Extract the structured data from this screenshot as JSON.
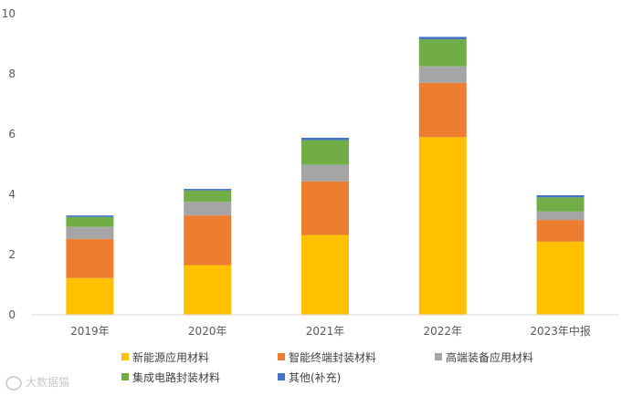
{
  "chart_data": {
    "type": "bar",
    "stacked": true,
    "categories": [
      "2019年",
      "2020年",
      "2021年",
      "2022年",
      "2023年中报"
    ],
    "series": [
      {
        "name": "新能源应用材料",
        "color": "#FFC000",
        "values": [
          1.22,
          1.65,
          2.65,
          5.9,
          2.43
        ]
      },
      {
        "name": "智能终端封装材料",
        "color": "#ED7D31",
        "values": [
          1.3,
          1.65,
          1.78,
          1.8,
          0.72
        ]
      },
      {
        "name": "高端装备应用材料",
        "color": "#A5A5A5",
        "values": [
          0.4,
          0.45,
          0.55,
          0.55,
          0.28
        ]
      },
      {
        "name": "集成电路封装材料",
        "color": "#70AD47",
        "values": [
          0.33,
          0.38,
          0.82,
          0.9,
          0.47
        ]
      },
      {
        "name": "其他(补充)",
        "color": "#4472C4",
        "values": [
          0.05,
          0.05,
          0.08,
          0.08,
          0.07
        ]
      }
    ],
    "ylim": [
      0,
      10
    ],
    "yticks": [
      "0",
      "2",
      "4",
      "6",
      "8",
      "10"
    ],
    "grid": false,
    "legend_position": "bottom"
  },
  "watermark": {
    "icon": "weibo-like-icon",
    "text": "大数据猫"
  }
}
